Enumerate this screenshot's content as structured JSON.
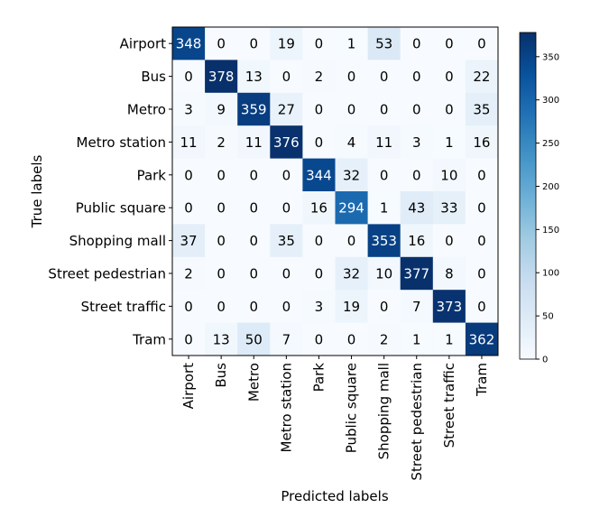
{
  "chart_data": {
    "type": "heatmap",
    "title": "",
    "xlabel": "Predicted labels",
    "ylabel": "True labels",
    "row_labels": [
      "Airport",
      "Bus",
      "Metro",
      "Metro station",
      "Park",
      "Public square",
      "Shopping mall",
      "Street pedestrian",
      "Street traffic",
      "Tram"
    ],
    "col_labels": [
      "Airport",
      "Bus",
      "Metro",
      "Metro station",
      "Park",
      "Public square",
      "Shopping mall",
      "Street pedestrian",
      "Street traffic",
      "Tram"
    ],
    "values": [
      [
        348,
        0,
        0,
        19,
        0,
        1,
        53,
        0,
        0,
        0
      ],
      [
        0,
        378,
        13,
        0,
        2,
        0,
        0,
        0,
        0,
        22
      ],
      [
        3,
        9,
        359,
        27,
        0,
        0,
        0,
        0,
        0,
        35
      ],
      [
        11,
        2,
        11,
        376,
        0,
        4,
        11,
        3,
        1,
        16
      ],
      [
        0,
        0,
        0,
        0,
        344,
        32,
        0,
        0,
        10,
        0
      ],
      [
        0,
        0,
        0,
        0,
        16,
        294,
        1,
        43,
        33,
        0
      ],
      [
        37,
        0,
        0,
        35,
        0,
        0,
        353,
        16,
        0,
        0
      ],
      [
        2,
        0,
        0,
        0,
        0,
        32,
        10,
        377,
        8,
        0
      ],
      [
        0,
        0,
        0,
        0,
        3,
        19,
        0,
        7,
        373,
        0
      ],
      [
        0,
        13,
        50,
        7,
        0,
        0,
        2,
        1,
        1,
        362
      ]
    ],
    "colormap": "Blues",
    "vmin": 0,
    "vmax": 378,
    "colorbar_ticks": [
      0,
      50,
      100,
      150,
      200,
      250,
      300,
      350
    ]
  }
}
